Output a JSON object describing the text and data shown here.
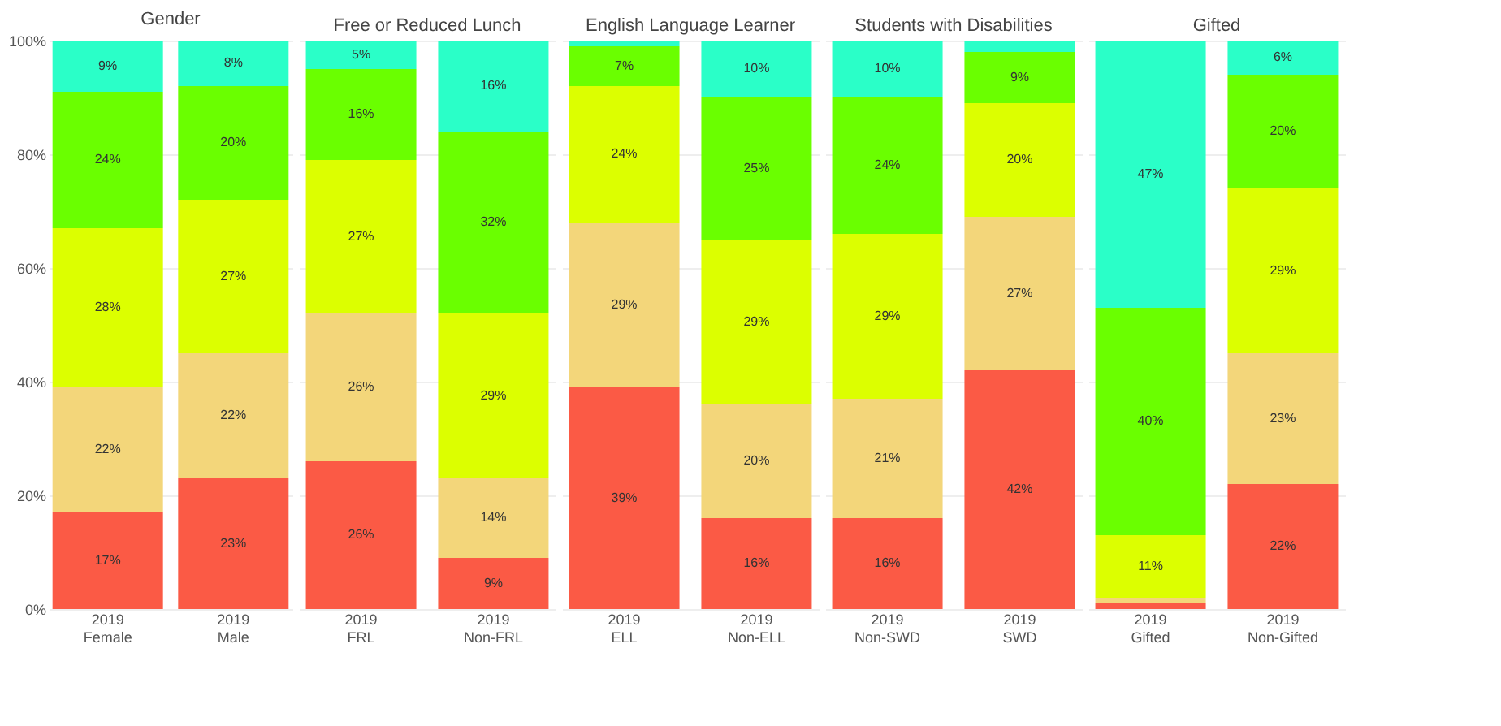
{
  "chart_data": [
    {
      "type": "bar",
      "title": "Gender",
      "stacked": true,
      "categories": [
        "2019\nFemale",
        "2019\nMale"
      ],
      "ylim": [
        0,
        100
      ],
      "yticks": [
        {
          "value": 0,
          "label": "0%"
        },
        {
          "value": 20,
          "label": "20%"
        },
        {
          "value": 40,
          "label": "40%"
        },
        {
          "value": 60,
          "label": "60%"
        },
        {
          "value": 80,
          "label": "80%"
        },
        {
          "value": 100,
          "label": "100%"
        }
      ],
      "grid": "y",
      "series": [
        {
          "color": "#fb5a45",
          "values": [
            17,
            23
          ],
          "value_labels": [
            "17%",
            "23%"
          ]
        },
        {
          "color": "#f3d67a",
          "values": [
            22,
            22
          ],
          "value_labels": [
            "22%",
            "22%"
          ]
        },
        {
          "color": "#dcff00",
          "values": [
            28,
            27
          ],
          "value_labels": [
            "28%",
            "27%"
          ]
        },
        {
          "color": "#6aff00",
          "values": [
            24,
            20
          ],
          "value_labels": [
            "24%",
            "20%"
          ]
        },
        {
          "color": "#2affc8",
          "values": [
            9,
            8
          ],
          "value_labels": [
            "9%",
            "8%"
          ]
        }
      ]
    },
    {
      "type": "bar",
      "title": "Free or Reduced Lunch",
      "stacked": true,
      "categories": [
        "2019\nFRL",
        "2019\nNon-FRL"
      ],
      "ylim": [
        0,
        100
      ],
      "yticks": [
        {
          "value": 0,
          "label": null
        },
        {
          "value": 20,
          "label": null
        },
        {
          "value": 40,
          "label": null
        },
        {
          "value": 60,
          "label": null
        },
        {
          "value": 80,
          "label": null
        },
        {
          "value": 100,
          "label": null
        }
      ],
      "grid": "y",
      "tick_labels": "x",
      "series": [
        {
          "color": "#fb5a45",
          "values": [
            26,
            9
          ],
          "value_labels": [
            "26%",
            "9%"
          ]
        },
        {
          "color": "#f3d67a",
          "values": [
            26,
            14
          ],
          "value_labels": [
            "26%",
            "14%"
          ]
        },
        {
          "color": "#dcff00",
          "values": [
            27,
            29
          ],
          "value_labels": [
            "27%",
            "29%"
          ]
        },
        {
          "color": "#6aff00",
          "values": [
            16,
            32
          ],
          "value_labels": [
            "16%",
            "32%"
          ]
        },
        {
          "color": "#2affc8",
          "values": [
            5,
            16
          ],
          "value_labels": [
            "5%",
            "16%"
          ]
        }
      ]
    },
    {
      "type": "bar",
      "title": "English Language Learner",
      "stacked": true,
      "categories": [
        "2019\nELL",
        "2019\nNon-ELL"
      ],
      "ylim": [
        0,
        100
      ],
      "yticks": [
        {
          "value": 0,
          "label": null
        },
        {
          "value": 20,
          "label": null
        },
        {
          "value": 40,
          "label": null
        },
        {
          "value": 60,
          "label": null
        },
        {
          "value": 80,
          "label": null
        },
        {
          "value": 100,
          "label": null
        }
      ],
      "grid": "y",
      "tick_labels": "x",
      "series": [
        {
          "color": "#fb5a45",
          "values": [
            39,
            16
          ],
          "value_labels": [
            "39%",
            "16%"
          ]
        },
        {
          "color": "#f3d67a",
          "values": [
            29,
            20
          ],
          "value_labels": [
            "29%",
            "20%"
          ]
        },
        {
          "color": "#dcff00",
          "values": [
            24,
            29
          ],
          "value_labels": [
            "24%",
            "29%"
          ]
        },
        {
          "color": "#6aff00",
          "values": [
            7,
            25
          ],
          "value_labels": [
            "7%",
            "25%"
          ]
        },
        {
          "color": "#2affc8",
          "values": [
            1,
            10
          ],
          "value_labels": [
            null,
            "10%"
          ]
        }
      ]
    },
    {
      "type": "bar",
      "title": "Students with Disabilities",
      "stacked": true,
      "categories": [
        "2019\nNon-SWD",
        "2019\nSWD"
      ],
      "ylim": [
        0,
        100
      ],
      "yticks": [
        {
          "value": 0,
          "label": null
        },
        {
          "value": 20,
          "label": null
        },
        {
          "value": 40,
          "label": null
        },
        {
          "value": 60,
          "label": null
        },
        {
          "value": 80,
          "label": null
        },
        {
          "value": 100,
          "label": null
        }
      ],
      "grid": "y",
      "tick_labels": "x",
      "series": [
        {
          "color": "#fb5a45",
          "values": [
            16,
            42
          ],
          "value_labels": [
            "16%",
            "42%"
          ]
        },
        {
          "color": "#f3d67a",
          "values": [
            21,
            27
          ],
          "value_labels": [
            "21%",
            "27%"
          ]
        },
        {
          "color": "#dcff00",
          "values": [
            29,
            20
          ],
          "value_labels": [
            "29%",
            "20%"
          ]
        },
        {
          "color": "#6aff00",
          "values": [
            24,
            9
          ],
          "value_labels": [
            "24%",
            "9%"
          ]
        },
        {
          "color": "#2affc8",
          "values": [
            10,
            2
          ],
          "value_labels": [
            "10%",
            null
          ]
        }
      ]
    },
    {
      "type": "bar",
      "title": "Gifted",
      "stacked": true,
      "categories": [
        "2019\nGifted",
        "2019\nNon-Gifted"
      ],
      "ylim": [
        0,
        100
      ],
      "yticks": [
        {
          "value": 0,
          "label": null
        },
        {
          "value": 20,
          "label": null
        },
        {
          "value": 40,
          "label": null
        },
        {
          "value": 60,
          "label": null
        },
        {
          "value": 80,
          "label": null
        },
        {
          "value": 100,
          "label": null
        }
      ],
      "grid": "y",
      "tick_labels": "x",
      "series": [
        {
          "color": "#fb5a45",
          "values": [
            1,
            22
          ],
          "value_labels": [
            null,
            "22%"
          ]
        },
        {
          "color": "#f3d67a",
          "values": [
            1,
            23
          ],
          "value_labels": [
            null,
            "23%"
          ]
        },
        {
          "color": "#dcff00",
          "values": [
            11,
            29
          ],
          "value_labels": [
            "11%",
            "29%"
          ]
        },
        {
          "color": "#6aff00",
          "values": [
            40,
            20
          ],
          "value_labels": [
            "40%",
            "20%"
          ]
        },
        {
          "color": "#2affc8",
          "values": [
            47,
            6
          ],
          "value_labels": [
            "47%",
            "6%"
          ]
        }
      ]
    }
  ]
}
